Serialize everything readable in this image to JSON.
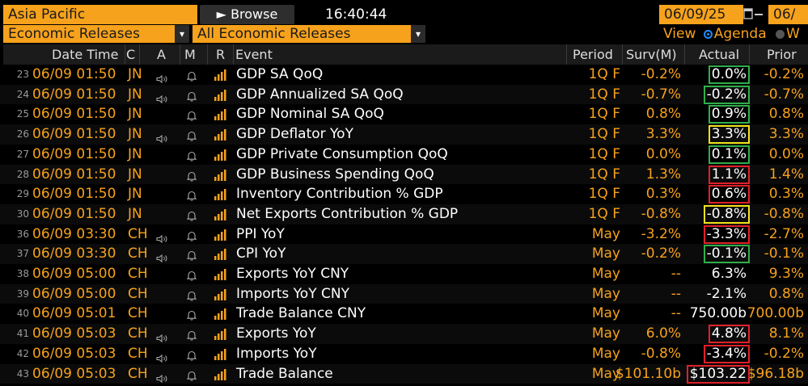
{
  "toolbar": {
    "region": "Asia Pacific",
    "browse_label": "Browse",
    "time": "16:40:44",
    "start_date": "06/09/25",
    "end_date_partial": "06/",
    "category": "Economic Releases",
    "filter": "All Economic Releases",
    "view_label": "View",
    "view_option_selected": "Agenda",
    "view_option_other": "W"
  },
  "columns": {
    "datetime": "Date Time",
    "country": "C",
    "a": "A",
    "m": "M",
    "r": "R",
    "event": "Event",
    "period": "Period",
    "survey": "Surv(M)",
    "actual": "Actual",
    "prior": "Prior"
  },
  "rows": [
    {
      "num": "23",
      "dt": "06/09 01:50",
      "c": "JN",
      "speaker": true,
      "event": "GDP SA QoQ",
      "period": "1Q F",
      "surv": "-0.2%",
      "actual": "0.0%",
      "prior": "-0.2%",
      "hl": "green"
    },
    {
      "num": "24",
      "dt": "06/09 01:50",
      "c": "JN",
      "speaker": true,
      "event": "GDP Annualized SA QoQ",
      "period": "1Q F",
      "surv": "-0.7%",
      "actual": "-0.2%",
      "prior": "-0.7%",
      "hl": "green"
    },
    {
      "num": "25",
      "dt": "06/09 01:50",
      "c": "JN",
      "speaker": false,
      "event": "GDP Nominal SA QoQ",
      "period": "1Q F",
      "surv": "0.8%",
      "actual": "0.9%",
      "prior": "0.8%",
      "hl": "green"
    },
    {
      "num": "26",
      "dt": "06/09 01:50",
      "c": "JN",
      "speaker": true,
      "event": "GDP Deflator YoY",
      "period": "1Q F",
      "surv": "3.3%",
      "actual": "3.3%",
      "prior": "3.3%",
      "hl": "yellow"
    },
    {
      "num": "27",
      "dt": "06/09 01:50",
      "c": "JN",
      "speaker": false,
      "event": "GDP Private Consumption QoQ",
      "period": "1Q F",
      "surv": "0.0%",
      "actual": "0.1%",
      "prior": "0.0%",
      "hl": "green"
    },
    {
      "num": "28",
      "dt": "06/09 01:50",
      "c": "JN",
      "speaker": false,
      "event": "GDP Business Spending QoQ",
      "period": "1Q F",
      "surv": "1.3%",
      "actual": "1.1%",
      "prior": "1.4%",
      "hl": "red"
    },
    {
      "num": "29",
      "dt": "06/09 01:50",
      "c": "JN",
      "speaker": false,
      "event": "Inventory Contribution % GDP",
      "period": "1Q F",
      "surv": "0.3%",
      "actual": "0.6%",
      "prior": "0.3%",
      "hl": "red"
    },
    {
      "num": "30",
      "dt": "06/09 01:50",
      "c": "JN",
      "speaker": false,
      "event": "Net Exports Contribution % GDP",
      "period": "1Q F",
      "surv": "-0.8%",
      "actual": "-0.8%",
      "prior": "-0.8%",
      "hl": "yellow"
    },
    {
      "num": "36",
      "dt": "06/09 03:30",
      "c": "CH",
      "speaker": true,
      "event": "PPI YoY",
      "period": "May",
      "surv": "-3.2%",
      "actual": "-3.3%",
      "prior": "-2.7%",
      "hl": "red"
    },
    {
      "num": "37",
      "dt": "06/09 03:30",
      "c": "CH",
      "speaker": true,
      "event": "CPI YoY",
      "period": "May",
      "surv": "-0.2%",
      "actual": "-0.1%",
      "prior": "-0.1%",
      "hl": "green"
    },
    {
      "num": "38",
      "dt": "06/09 05:00",
      "c": "CH",
      "speaker": false,
      "event": "Exports YoY CNY",
      "period": "May",
      "surv": "--",
      "actual": "6.3%",
      "prior": "9.3%",
      "hl": ""
    },
    {
      "num": "39",
      "dt": "06/09 05:00",
      "c": "CH",
      "speaker": false,
      "event": "Imports YoY CNY",
      "period": "May",
      "surv": "--",
      "actual": "-2.1%",
      "prior": "0.8%",
      "hl": ""
    },
    {
      "num": "40",
      "dt": "06/09 05:01",
      "c": "CH",
      "speaker": false,
      "event": "Trade Balance CNY",
      "period": "May",
      "surv": "--",
      "actual": "750.00b",
      "prior": "700.00b",
      "hl": ""
    },
    {
      "num": "41",
      "dt": "06/09 05:03",
      "c": "CH",
      "speaker": true,
      "event": "Exports YoY",
      "period": "May",
      "surv": "6.0%",
      "actual": "4.8%",
      "prior": "8.1%",
      "hl": "red"
    },
    {
      "num": "42",
      "dt": "06/09 05:03",
      "c": "CH",
      "speaker": true,
      "event": "Imports YoY",
      "period": "May",
      "surv": "-0.8%",
      "actual": "-3.4%",
      "prior": "-0.2%",
      "hl": "red"
    },
    {
      "num": "43",
      "dt": "06/09 05:03",
      "c": "CH",
      "speaker": true,
      "event": "Trade Balance",
      "period": "May",
      "surv": "$101.10b",
      "actual": "$103.22",
      "prior": "$96.18b",
      "hl": "red"
    }
  ],
  "colors": {
    "accent": "#f7a21c",
    "green": "#2fae4a",
    "yellow": "#f2e21a",
    "red": "#e0202a"
  },
  "icons": {
    "speaker": "speaker-icon",
    "bell": "bell-icon",
    "relevance": "relevance-bars-icon",
    "calendar": "calendar-icon",
    "dropdown": "chevron-down-icon"
  }
}
